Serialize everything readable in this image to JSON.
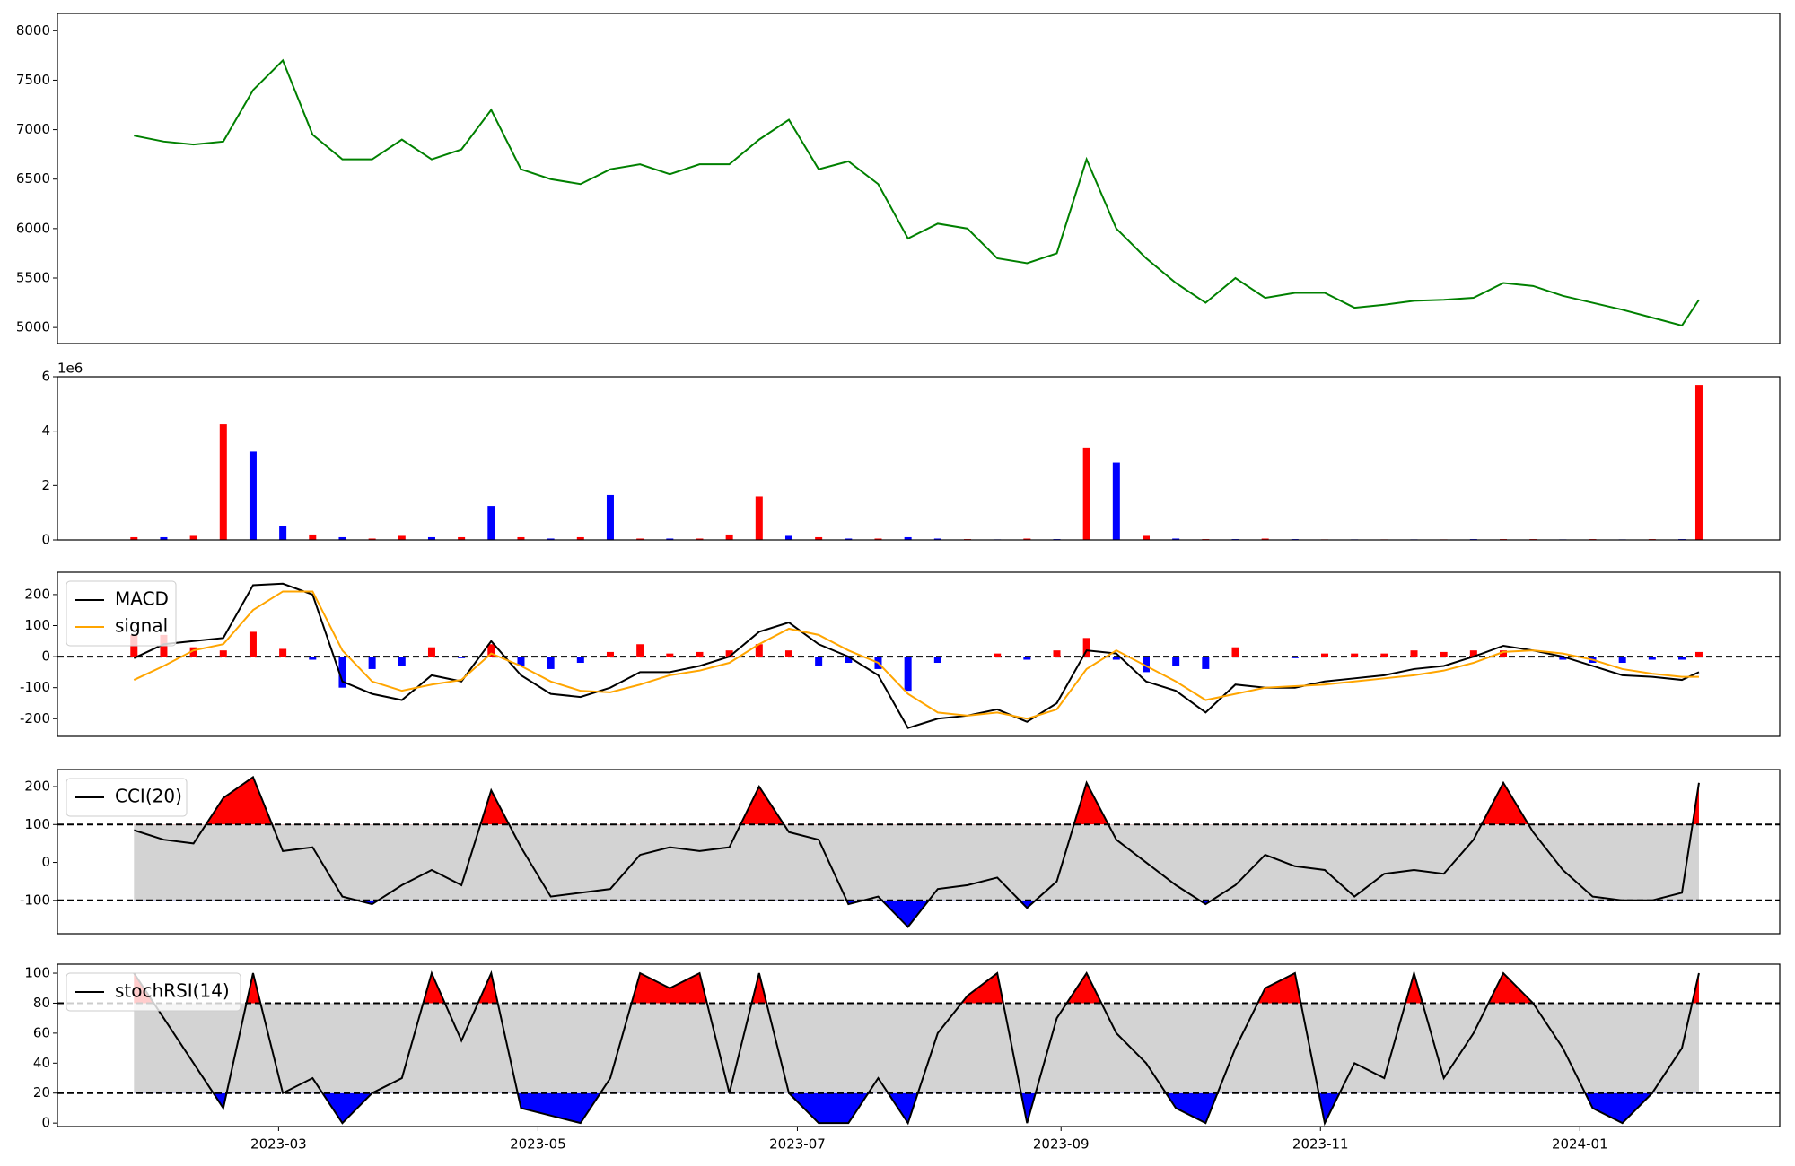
{
  "chart_data": [
    {
      "type": "line",
      "ylim": [
        4838,
        8175
      ],
      "yticks": [
        5000,
        5500,
        6000,
        6500,
        7000,
        7500,
        8000
      ],
      "series": [
        {
          "color": "green",
          "values": [
            6940,
            6880,
            6850,
            6880,
            7400,
            7700,
            6950,
            6700,
            6700,
            6900,
            6700,
            6800,
            7200,
            6600,
            6500,
            6450,
            6600,
            6650,
            6550,
            6650,
            6650,
            6900,
            7100,
            6600,
            6680,
            6450,
            5900,
            6050,
            6000,
            5700,
            5650,
            5750,
            6700,
            6000,
            5700,
            5450,
            5250,
            5500,
            5300,
            5350,
            5350,
            5200,
            5230,
            5270,
            5280,
            5300,
            5450,
            5420,
            5320,
            5250,
            5180,
            5100,
            5020,
            5280
          ]
        }
      ]
    },
    {
      "type": "bar",
      "ylim": [
        0,
        6
      ],
      "yticks": [
        0,
        2,
        4,
        6
      ],
      "offset_label": "1e6",
      "series": [
        {
          "values": [
            0.1,
            0.1,
            0.15,
            4.25,
            3.25,
            0.5,
            0.2,
            0.1,
            0.05,
            0.15,
            0.1,
            0.1,
            1.25,
            0.1,
            0.05,
            0.1,
            1.65,
            0.05,
            0.05,
            0.05,
            0.2,
            1.6,
            0.15,
            0.1,
            0.05,
            0.05,
            0.1,
            0.05,
            0.03,
            0.02,
            0.05,
            0.03,
            3.4,
            2.85,
            0.15,
            0.05,
            0.03,
            0.03,
            0.05,
            0.03,
            0.02,
            0.02,
            0.02,
            0.02,
            0.02,
            0.03,
            0.03,
            0.03,
            0.02,
            0.03,
            0.02,
            0.03,
            0.03,
            5.7
          ],
          "colors": [
            "red",
            "blue",
            "red",
            "red",
            "blue",
            "blue",
            "red",
            "blue",
            "red",
            "red",
            "blue",
            "red",
            "blue",
            "red",
            "blue",
            "red",
            "blue",
            "red",
            "blue",
            "red",
            "red",
            "red",
            "blue",
            "red",
            "blue",
            "red",
            "blue",
            "blue",
            "red",
            "blue",
            "red",
            "blue",
            "red",
            "blue",
            "red",
            "blue",
            "red",
            "blue",
            "red",
            "blue",
            "red",
            "blue",
            "red",
            "blue",
            "red",
            "blue",
            "red",
            "red",
            "blue",
            "red",
            "blue",
            "red",
            "blue",
            "red"
          ]
        }
      ]
    },
    {
      "type": "line",
      "ylim": [
        -257,
        272
      ],
      "yticks": [
        -200,
        -100,
        0,
        100,
        200
      ],
      "hlines": [
        0
      ],
      "legend": "upper left",
      "series": [
        {
          "type": "bar",
          "positive_color": "red",
          "negative_color": "blue",
          "values": [
            70,
            70,
            30,
            20,
            80,
            25,
            -10,
            -100,
            -40,
            -30,
            30,
            -5,
            40,
            -30,
            -40,
            -20,
            15,
            40,
            10,
            15,
            20,
            40,
            20,
            -30,
            -20,
            -40,
            -110,
            -20,
            0,
            10,
            -10,
            20,
            60,
            -10,
            -50,
            -30,
            -40,
            30,
            0,
            -5,
            10,
            10,
            10,
            20,
            15,
            20,
            20,
            0,
            -10,
            -20,
            -20,
            -10,
            -10,
            15
          ]
        },
        {
          "name": "MACD",
          "color": "black",
          "values": [
            -5,
            40,
            50,
            60,
            230,
            235,
            200,
            -80,
            -120,
            -140,
            -60,
            -80,
            50,
            -60,
            -120,
            -130,
            -100,
            -50,
            -50,
            -30,
            0,
            80,
            110,
            40,
            0,
            -60,
            -230,
            -200,
            -190,
            -170,
            -210,
            -150,
            20,
            10,
            -80,
            -110,
            -180,
            -90,
            -100,
            -100,
            -80,
            -70,
            -60,
            -40,
            -30,
            0,
            35,
            20,
            0,
            -30,
            -60,
            -65,
            -75,
            -50
          ]
        },
        {
          "name": "signal",
          "color": "orange",
          "values": [
            -75,
            -30,
            20,
            40,
            150,
            210,
            210,
            20,
            -80,
            -110,
            -90,
            -75,
            10,
            -30,
            -80,
            -110,
            -115,
            -90,
            -60,
            -45,
            -20,
            40,
            90,
            70,
            20,
            -20,
            -120,
            -180,
            -190,
            -180,
            -200,
            -170,
            -40,
            20,
            -30,
            -80,
            -140,
            -120,
            -100,
            -95,
            -90,
            -80,
            -70,
            -60,
            -45,
            -20,
            15,
            20,
            10,
            -10,
            -40,
            -55,
            -65,
            -65
          ]
        }
      ]
    },
    {
      "type": "line",
      "ylim": [
        -188,
        245
      ],
      "yticks": [
        -100,
        0,
        100,
        200
      ],
      "thresholds": [
        100,
        -100
      ],
      "band_color": "#d3d3d3",
      "above_color": "red",
      "below_color": "blue",
      "legend": "upper left",
      "series": [
        {
          "name": "CCI(20)",
          "color": "black",
          "values": [
            85,
            60,
            50,
            170,
            225,
            30,
            40,
            -90,
            -110,
            -60,
            -20,
            -60,
            190,
            40,
            -90,
            -80,
            -70,
            20,
            40,
            30,
            40,
            200,
            80,
            60,
            -110,
            -90,
            -170,
            -70,
            -60,
            -40,
            -120,
            -50,
            210,
            60,
            0,
            -60,
            -110,
            -60,
            20,
            -10,
            -20,
            -90,
            -30,
            -20,
            -30,
            60,
            210,
            80,
            -20,
            -90,
            -100,
            -100,
            -80,
            210
          ]
        }
      ]
    },
    {
      "type": "line",
      "ylim": [
        -2.3,
        106
      ],
      "yticks": [
        0,
        20,
        40,
        60,
        80,
        100
      ],
      "thresholds": [
        80,
        20
      ],
      "band_color": "#d3d3d3",
      "above_color": "red",
      "below_color": "blue",
      "legend": "upper left",
      "xlim": [
        "2023-01-08",
        "2024-02-17"
      ],
      "xticks": [
        {
          "value": "2023-03-01",
          "label": "2023-03"
        },
        {
          "value": "2023-05-01",
          "label": "2023-05"
        },
        {
          "value": "2023-07-01",
          "label": "2023-07"
        },
        {
          "value": "2023-09-01",
          "label": "2023-09"
        },
        {
          "value": "2023-11-01",
          "label": "2023-11"
        },
        {
          "value": "2024-01-01",
          "label": "2024-01"
        }
      ],
      "x": [
        "2023-01-26",
        "2023-02-02",
        "2023-02-09",
        "2023-02-16",
        "2023-02-23",
        "2023-03-02",
        "2023-03-09",
        "2023-03-16",
        "2023-03-23",
        "2023-03-30",
        "2023-04-06",
        "2023-04-13",
        "2023-04-20",
        "2023-04-27",
        "2023-05-04",
        "2023-05-11",
        "2023-05-18",
        "2023-05-25",
        "2023-06-01",
        "2023-06-08",
        "2023-06-15",
        "2023-06-22",
        "2023-06-29",
        "2023-07-06",
        "2023-07-13",
        "2023-07-20",
        "2023-07-27",
        "2023-08-03",
        "2023-08-10",
        "2023-08-17",
        "2023-08-24",
        "2023-08-31",
        "2023-09-07",
        "2023-09-14",
        "2023-09-21",
        "2023-09-28",
        "2023-10-05",
        "2023-10-12",
        "2023-10-19",
        "2023-10-26",
        "2023-11-02",
        "2023-11-09",
        "2023-11-16",
        "2023-11-23",
        "2023-11-30",
        "2023-12-07",
        "2023-12-14",
        "2023-12-21",
        "2023-12-28",
        "2024-01-04",
        "2024-01-11",
        "2024-01-18",
        "2024-01-25",
        "2024-01-29"
      ],
      "series": [
        {
          "name": "stochRSI(14)",
          "color": "black",
          "values": [
            100,
            70,
            40,
            10,
            100,
            20,
            30,
            0,
            20,
            30,
            100,
            55,
            100,
            10,
            5,
            0,
            30,
            100,
            90,
            100,
            20,
            100,
            20,
            0,
            0,
            30,
            0,
            60,
            85,
            100,
            0,
            70,
            100,
            60,
            40,
            10,
            0,
            50,
            90,
            100,
            0,
            40,
            30,
            100,
            30,
            60,
            100,
            80,
            50,
            10,
            0,
            20,
            50,
            100
          ]
        }
      ]
    }
  ]
}
